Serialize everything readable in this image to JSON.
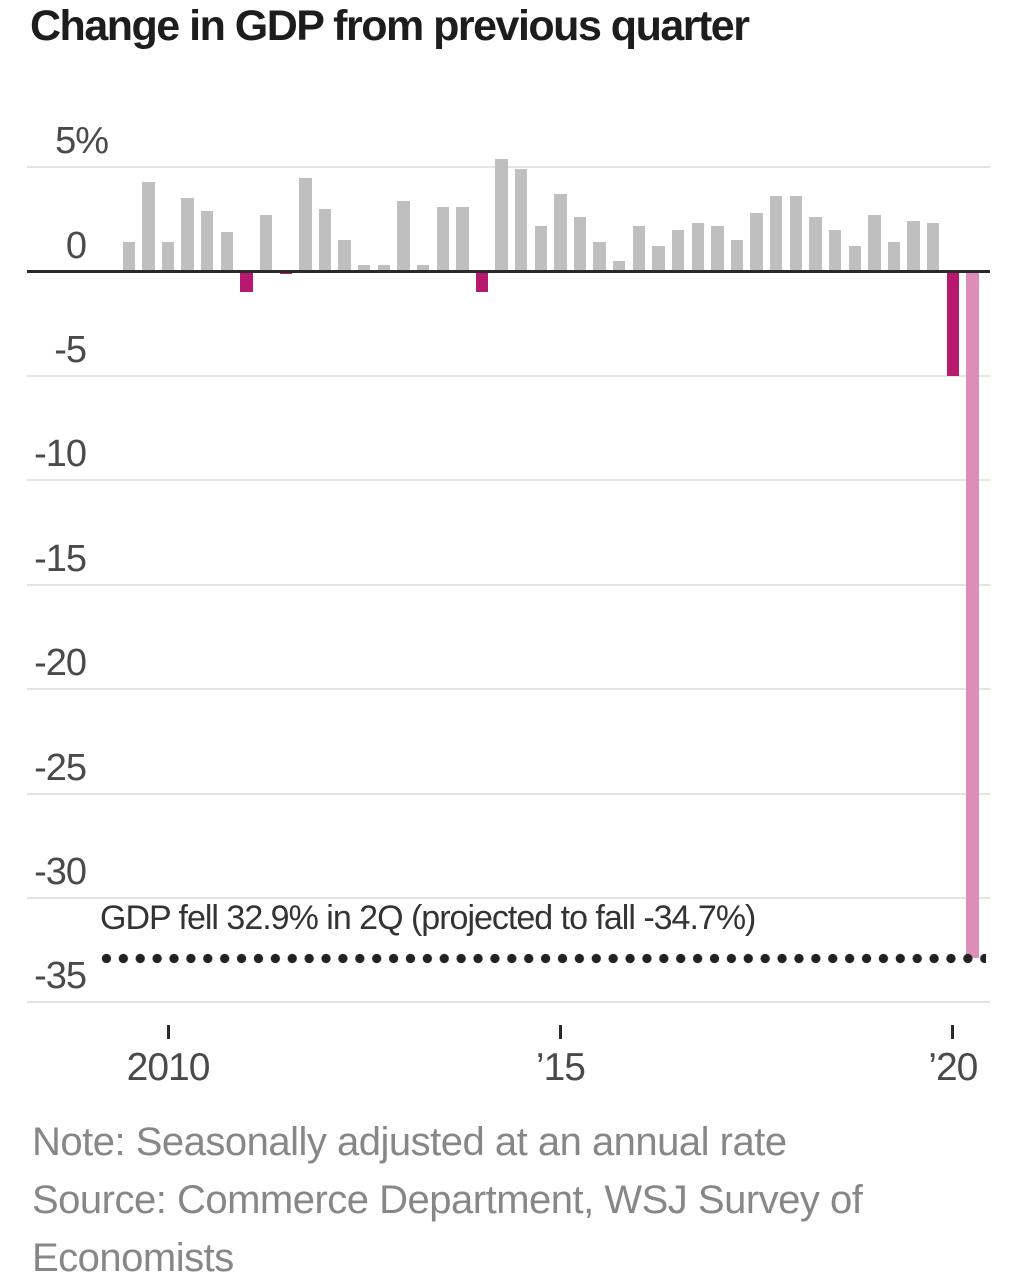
{
  "title": "Change in GDP from previous quarter",
  "chart_data": {
    "type": "bar",
    "title": "Change in GDP from previous quarter",
    "unit": "percent, seasonally adjusted annual rate",
    "categories": [
      "2009 Q3",
      "2009 Q4",
      "2010 Q1",
      "2010 Q2",
      "2010 Q3",
      "2010 Q4",
      "2011 Q1",
      "2011 Q2",
      "2011 Q3",
      "2011 Q4",
      "2012 Q1",
      "2012 Q2",
      "2012 Q3",
      "2012 Q4",
      "2013 Q1",
      "2013 Q2",
      "2013 Q3",
      "2013 Q4",
      "2014 Q1",
      "2014 Q2",
      "2014 Q3",
      "2014 Q4",
      "2015 Q1",
      "2015 Q2",
      "2015 Q3",
      "2015 Q4",
      "2016 Q1",
      "2016 Q2",
      "2016 Q3",
      "2016 Q4",
      "2017 Q1",
      "2017 Q2",
      "2017 Q3",
      "2017 Q4",
      "2018 Q1",
      "2018 Q2",
      "2018 Q3",
      "2018 Q4",
      "2019 Q1",
      "2019 Q2",
      "2019 Q3",
      "2019 Q4",
      "2020 Q1",
      "2020 Q2"
    ],
    "values": [
      1.4,
      4.3,
      1.4,
      3.5,
      2.9,
      1.9,
      -1.0,
      2.7,
      -0.1,
      4.5,
      3.0,
      1.5,
      0.3,
      0.3,
      3.4,
      0.3,
      3.1,
      3.1,
      -1.0,
      5.4,
      4.9,
      2.2,
      3.7,
      2.6,
      1.4,
      0.5,
      2.2,
      1.2,
      2.0,
      2.3,
      2.2,
      1.5,
      2.8,
      3.6,
      3.6,
      2.6,
      2.0,
      1.2,
      2.7,
      1.4,
      2.4,
      2.3,
      -5.0,
      -32.9
    ],
    "ylim": [
      -35,
      5
    ],
    "yticks": [
      {
        "value": 5,
        "label": "5%"
      },
      {
        "value": 0,
        "label": "0"
      },
      {
        "value": -5,
        "label": "-5"
      },
      {
        "value": -10,
        "label": "-10"
      },
      {
        "value": -15,
        "label": "-15"
      },
      {
        "value": -20,
        "label": "-20"
      },
      {
        "value": -25,
        "label": "-25"
      },
      {
        "value": -30,
        "label": "-30"
      },
      {
        "value": -35,
        "label": "-35"
      }
    ],
    "xticks": [
      {
        "index": 2,
        "label": "2010"
      },
      {
        "index": 22,
        "label": "’15"
      },
      {
        "index": 42,
        "label": "’20"
      }
    ],
    "grid": "horizontal",
    "legend": "none",
    "annotation": {
      "text": "GDP fell 32.9% in 2Q (projected to fall -34.7%)",
      "line_value": -32.9,
      "line_style": "dotted"
    }
  },
  "colors": {
    "bar_positive": "#bfbfbf",
    "bar_negative": "#b7196e",
    "bar_latest": "#de8db9",
    "axis_line": "#2a2a2a",
    "gridline": "#e4e4e4",
    "dotted_line": "#222222",
    "title_text": "#1d1d1d",
    "tick_text": "#4a4a4a",
    "annotation_text": "#333333",
    "footer_text": "#878787"
  },
  "footer": {
    "note": "Note: Seasonally adjusted at an annual rate",
    "source_line1": "Source: Commerce Department, WSJ Survey of",
    "source_line2": "Economists"
  }
}
